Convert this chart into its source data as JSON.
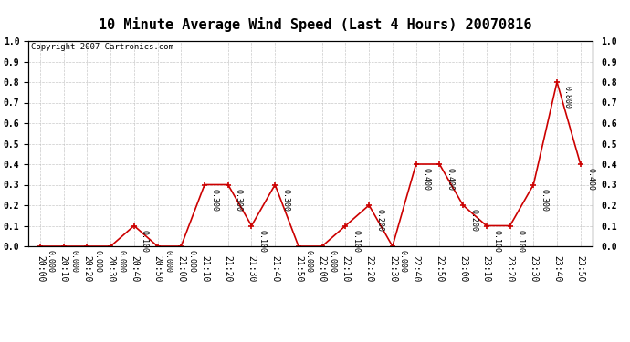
{
  "title": "10 Minute Average Wind Speed (Last 4 Hours) 20070816",
  "copyright": "Copyright 2007 Cartronics.com",
  "x_labels": [
    "20:00",
    "20:10",
    "20:20",
    "20:30",
    "20:40",
    "20:50",
    "21:00",
    "21:10",
    "21:20",
    "21:30",
    "21:40",
    "21:50",
    "22:00",
    "22:10",
    "22:20",
    "22:30",
    "22:40",
    "22:50",
    "23:00",
    "23:10",
    "23:20",
    "23:30",
    "23:40",
    "23:50"
  ],
  "y_values": [
    0.0,
    0.0,
    0.0,
    0.0,
    0.1,
    0.0,
    0.0,
    0.3,
    0.3,
    0.1,
    0.3,
    0.0,
    0.0,
    0.1,
    0.2,
    0.0,
    0.4,
    0.4,
    0.2,
    0.1,
    0.1,
    0.3,
    0.8,
    0.4
  ],
  "line_color": "#cc0000",
  "marker_color": "#cc0000",
  "bg_color": "#ffffff",
  "grid_color": "#bbbbbb",
  "title_fontsize": 11,
  "copyright_fontsize": 6.5,
  "label_fontsize": 6,
  "tick_fontsize": 7,
  "ylim": [
    0.0,
    1.0
  ],
  "yticks": [
    0.0,
    0.1,
    0.2,
    0.3,
    0.4,
    0.5,
    0.6,
    0.7,
    0.8,
    0.9,
    1.0
  ]
}
